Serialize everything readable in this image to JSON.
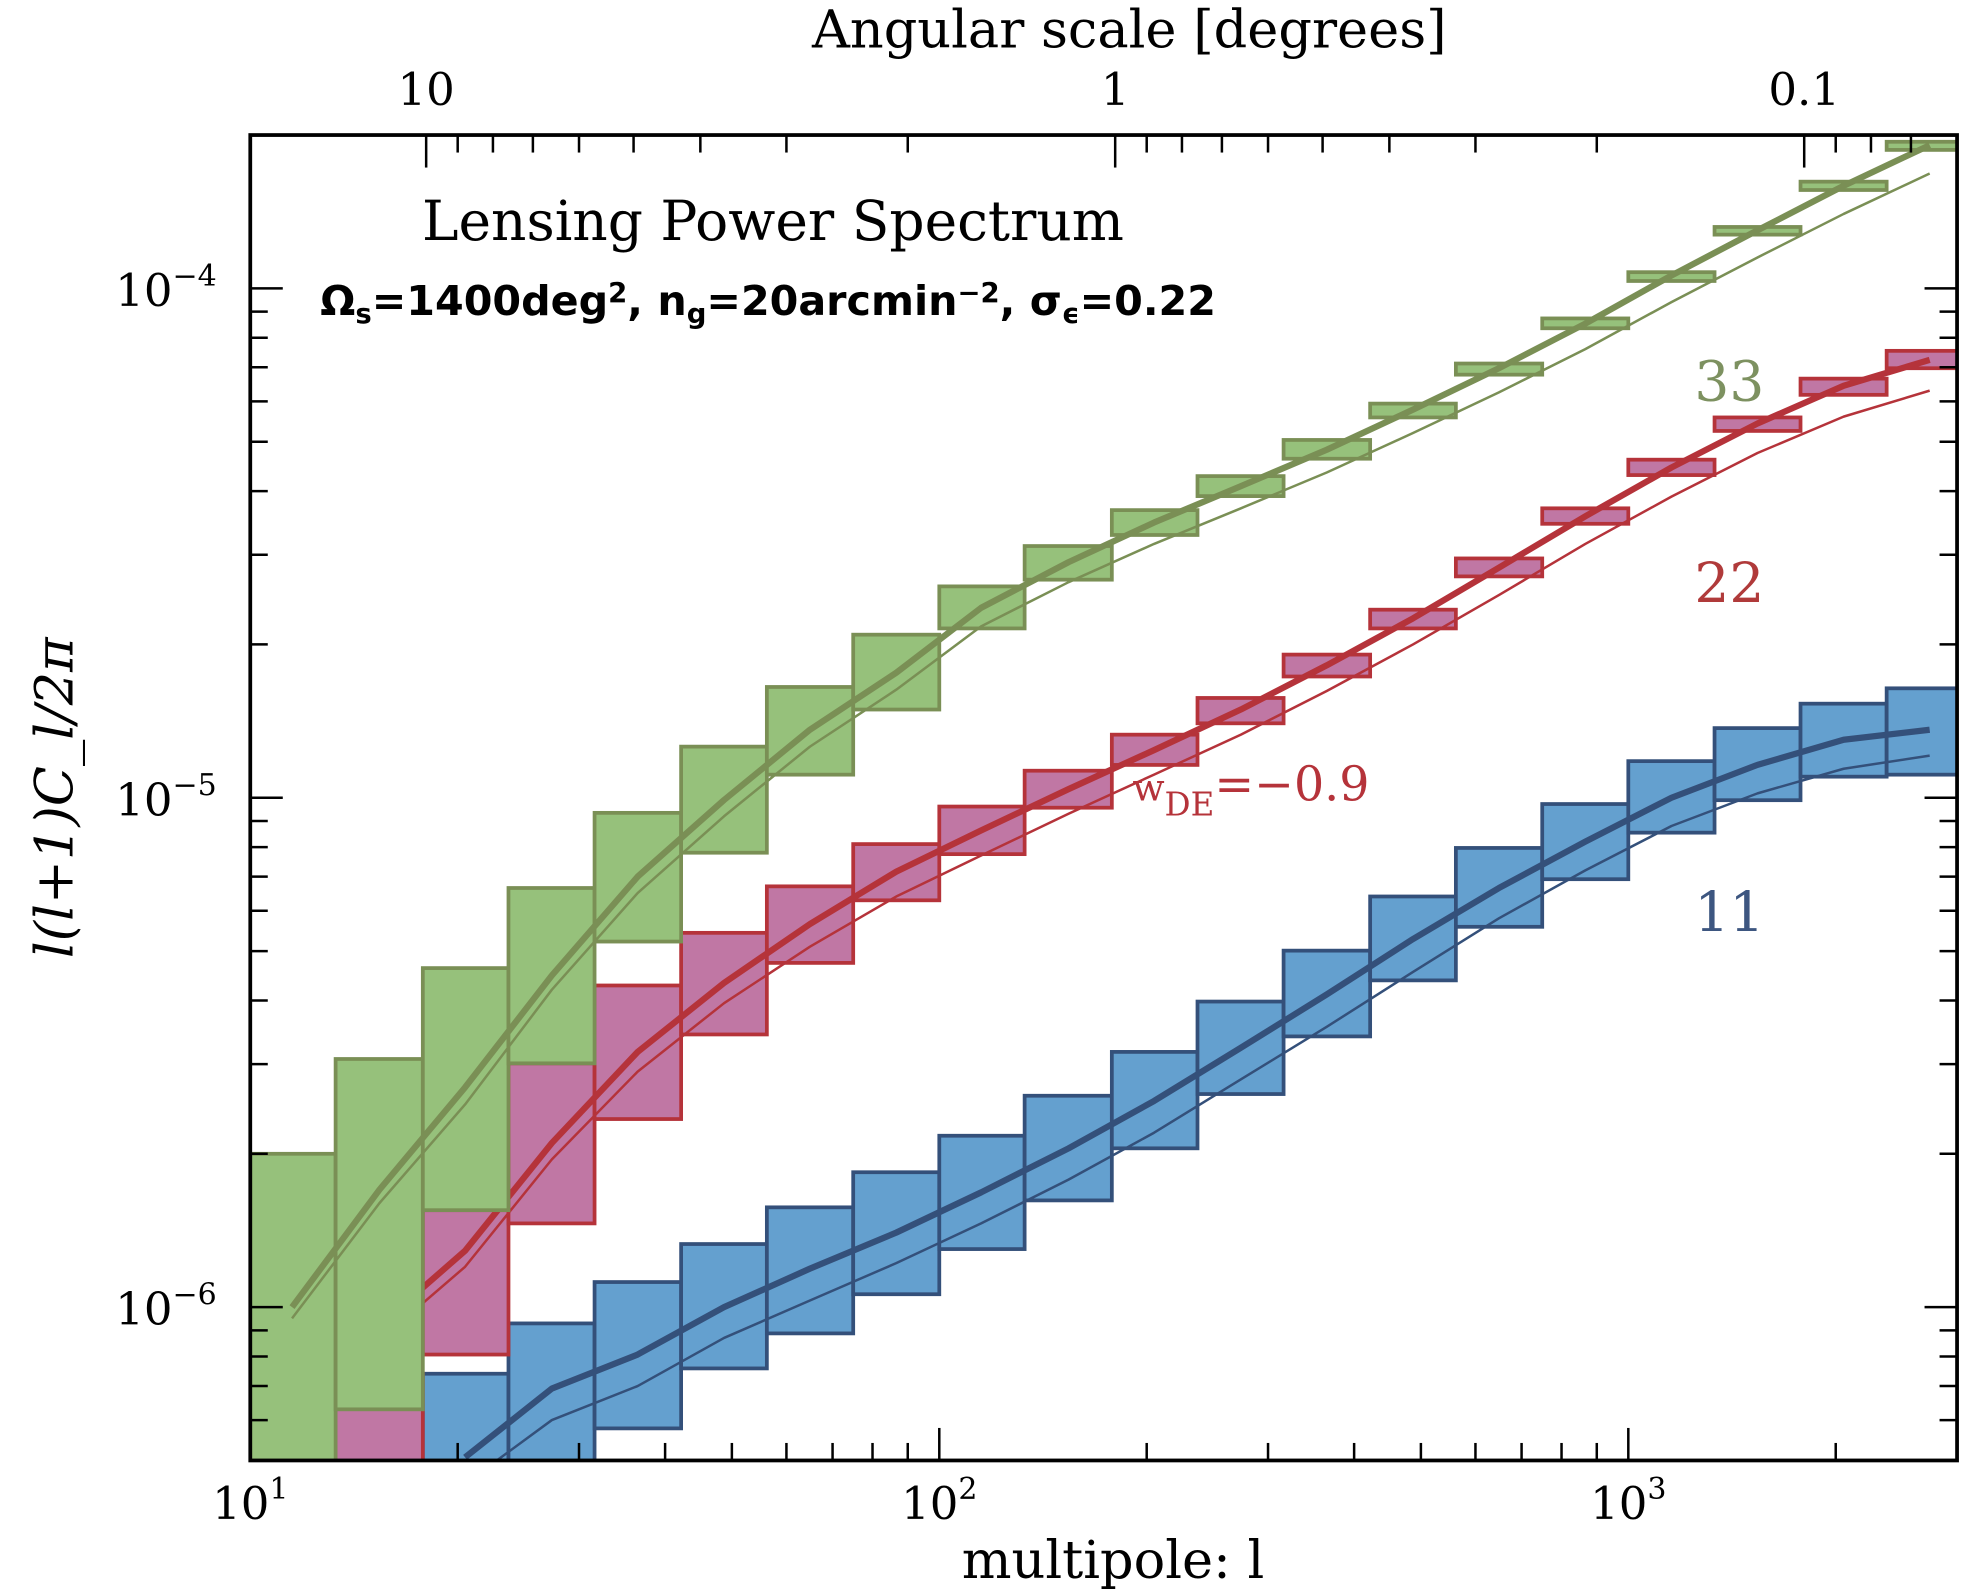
{
  "chart_data": {
    "type": "bar",
    "title": "Lensing Power Spectrum",
    "subtitle_parts": [
      {
        "text": "Ω",
        "shift": ""
      },
      {
        "text": "s",
        "shift": "sub"
      },
      {
        "text": "=1400deg",
        "shift": ""
      },
      {
        "text": "2",
        "shift": "sup"
      },
      {
        "text": ", n",
        "shift": ""
      },
      {
        "text": "g",
        "shift": "sub"
      },
      {
        "text": "=20arcmin",
        "shift": ""
      },
      {
        "text": "−2",
        "shift": "sup"
      },
      {
        "text": ", σ",
        "shift": ""
      },
      {
        "text": "ϵ",
        "shift": "sub"
      },
      {
        "text": "=0.22",
        "shift": ""
      }
    ],
    "xlabel": "multipole: l",
    "ylabel": "l(l+1)C_l/2π",
    "top_xlabel": "Angular scale [degrees]",
    "xscale": "log",
    "yscale": "log",
    "xlim": [
      10,
      3000
    ],
    "ylim": [
      5e-07,
      0.0002
    ],
    "x_ticks": [
      {
        "value": 10,
        "base": "10",
        "exp": "1"
      },
      {
        "value": 100,
        "base": "10",
        "exp": "2"
      },
      {
        "value": 1000,
        "base": "10",
        "exp": "3"
      }
    ],
    "y_ticks": [
      {
        "value": 1e-06,
        "base": "10",
        "exp": "−6"
      },
      {
        "value": 1e-05,
        "base": "10",
        "exp": "−5"
      },
      {
        "value": 0.0001,
        "base": "10",
        "exp": "−4"
      }
    ],
    "top_ticks_degrees": [
      {
        "value": 10,
        "label": "10"
      },
      {
        "value": 1,
        "label": "1"
      },
      {
        "value": 0.1,
        "label": "0.1"
      }
    ],
    "bin_edges": [
      10,
      13.3,
      17.8,
      23.7,
      31.6,
      42.2,
      56.2,
      75,
      100,
      133,
      178,
      237,
      316,
      422,
      562,
      750,
      1000,
      1334,
      1778,
      2371,
      3162
    ],
    "bin_centers": [
      11.5,
      15.4,
      20.5,
      27.4,
      36.5,
      48.7,
      64.9,
      86.6,
      115,
      154,
      205,
      274,
      365,
      487,
      649,
      866,
      1155,
      1540,
      2054,
      2738
    ],
    "annotations": [
      {
        "text": "w",
        "sub": "DE",
        "rest": "=−0.9",
        "color": "#b5333a",
        "l": 160,
        "value": 1e-05
      }
    ],
    "series": [
      {
        "label": "11",
        "fill": "#64a0cf",
        "stroke": "#34507a",
        "label_color": "#3d5680",
        "label_l": 1100,
        "label_value": 6e-06,
        "bins_low": [
          null,
          null,
          3e-07,
          3e-07,
          5.78e-07,
          7.58e-07,
          8.88e-07,
          1.06e-06,
          1.3e-06,
          1.62e-06,
          2.05e-06,
          2.62e-06,
          3.4e-06,
          4.38e-06,
          5.58e-06,
          6.92e-06,
          8.54e-06,
          9.89e-06,
          1.1e-05,
          1.11e-05
        ],
        "bins_high": [
          null,
          null,
          7.4e-07,
          9.29e-07,
          1.12e-06,
          1.33e-06,
          1.57e-06,
          1.84e-06,
          2.17e-06,
          2.6e-06,
          3.17e-06,
          3.98e-06,
          5.01e-06,
          6.4e-06,
          7.97e-06,
          9.72e-06,
          1.18e-05,
          1.37e-05,
          1.53e-05,
          1.64e-05
        ],
        "model": [
          null,
          null,
          5.07e-07,
          6.92e-07,
          8.07e-07,
          1e-06,
          1.19e-06,
          1.4e-06,
          1.68e-06,
          2.05e-06,
          2.54e-06,
          3.23e-06,
          4.11e-06,
          5.28e-06,
          6.65e-06,
          8.2e-06,
          1e-05,
          1.16e-05,
          1.3e-05,
          1.36e-05
        ],
        "model_wDE": [
          null,
          null,
          4.5e-07,
          6e-07,
          7e-07,
          8.7e-07,
          1.03e-06,
          1.22e-06,
          1.46e-06,
          1.78e-06,
          2.2e-06,
          2.8e-06,
          3.55e-06,
          4.55e-06,
          5.8e-06,
          7.2e-06,
          8.8e-06,
          1.02e-05,
          1.14e-05,
          1.21e-05
        ]
      },
      {
        "label": "22",
        "fill": "#c077a4",
        "stroke": "#b5333a",
        "label_color": "#b03a3a",
        "label_l": 1100,
        "label_value": 2.65e-05,
        "bins_low": [
          null,
          3e-07,
          8.07e-07,
          1.46e-06,
          2.34e-06,
          3.43e-06,
          4.74e-06,
          6.29e-06,
          7.75e-06,
          9.56e-06,
          1.16e-05,
          1.4e-05,
          1.73e-05,
          2.15e-05,
          2.72e-05,
          3.45e-05,
          4.3e-05,
          5.25e-05,
          6.18e-05,
          6.97e-05
        ],
        "bins_high": [
          null,
          7.4e-07,
          1.55e-06,
          3.01e-06,
          4.28e-06,
          5.43e-06,
          6.7e-06,
          8.11e-06,
          9.61e-06,
          1.13e-05,
          1.33e-05,
          1.57e-05,
          1.91e-05,
          2.34e-05,
          2.95e-05,
          3.7e-05,
          4.61e-05,
          5.58e-05,
          6.65e-05,
          7.54e-05
        ],
        "model": [
          null,
          9.2e-07,
          1.29e-06,
          2.1e-06,
          3.17e-06,
          4.33e-06,
          5.65e-06,
          7.16e-06,
          8.63e-06,
          1.04e-05,
          1.24e-05,
          1.49e-05,
          1.82e-05,
          2.25e-05,
          2.83e-05,
          3.57e-05,
          4.45e-05,
          5.43e-05,
          6.44e-05,
          7.24e-05
        ],
        "model_wDE": [
          null,
          8.6e-07,
          1.2e-06,
          1.95e-06,
          2.9e-06,
          3.95e-06,
          5.1e-06,
          6.4e-06,
          7.7e-06,
          9.3e-06,
          1.11e-05,
          1.33e-05,
          1.62e-05,
          2e-05,
          2.5e-05,
          3.15e-05,
          3.9e-05,
          4.75e-05,
          5.6e-05,
          6.3e-05
        ]
      },
      {
        "label": "33",
        "fill": "#96c17b",
        "stroke": "#7a8f55",
        "label_color": "#7d9160",
        "label_l": 1100,
        "label_value": 6.6e-05,
        "bins_low": [
          3e-07,
          6.3e-07,
          1.55e-06,
          3.01e-06,
          5.22e-06,
          7.8e-06,
          1.11e-05,
          1.49e-05,
          2.15e-05,
          2.68e-05,
          3.28e-05,
          3.91e-05,
          4.63e-05,
          5.58e-05,
          6.77e-05,
          8.35e-05,
          0.0001034,
          0.0001275,
          0.000156,
          0.000187
        ],
        "bins_high": [
          2e-06,
          3.07e-06,
          4.63e-06,
          6.65e-06,
          9.34e-06,
          1.26e-05,
          1.65e-05,
          2.09e-05,
          2.6e-05,
          3.12e-05,
          3.67e-05,
          4.28e-05,
          5.04e-05,
          5.94e-05,
          7.12e-05,
          8.73e-05,
          0.0001076,
          0.000132,
          0.000162,
          0.000194
        ],
        "model": [
          1e-06,
          1.7e-06,
          2.7e-06,
          4.48e-06,
          7e-06,
          9.9e-06,
          1.36e-05,
          1.76e-05,
          2.36e-05,
          2.9e-05,
          3.47e-05,
          4.09e-05,
          4.82e-05,
          5.78e-05,
          6.97e-05,
          8.53e-05,
          0.000106,
          0.00013,
          0.000159,
          0.000191
        ],
        "model_wDE": [
          9.5e-07,
          1.6e-06,
          2.5e-06,
          4.2e-06,
          6.5e-06,
          9.2e-06,
          1.26e-05,
          1.63e-05,
          2.17e-05,
          2.65e-05,
          3.15e-05,
          3.7e-05,
          4.35e-05,
          5.2e-05,
          6.25e-05,
          7.6e-05,
          9.4e-05,
          0.000115,
          0.00014,
          0.000168
        ]
      }
    ],
    "grid": false,
    "legend": "none"
  }
}
